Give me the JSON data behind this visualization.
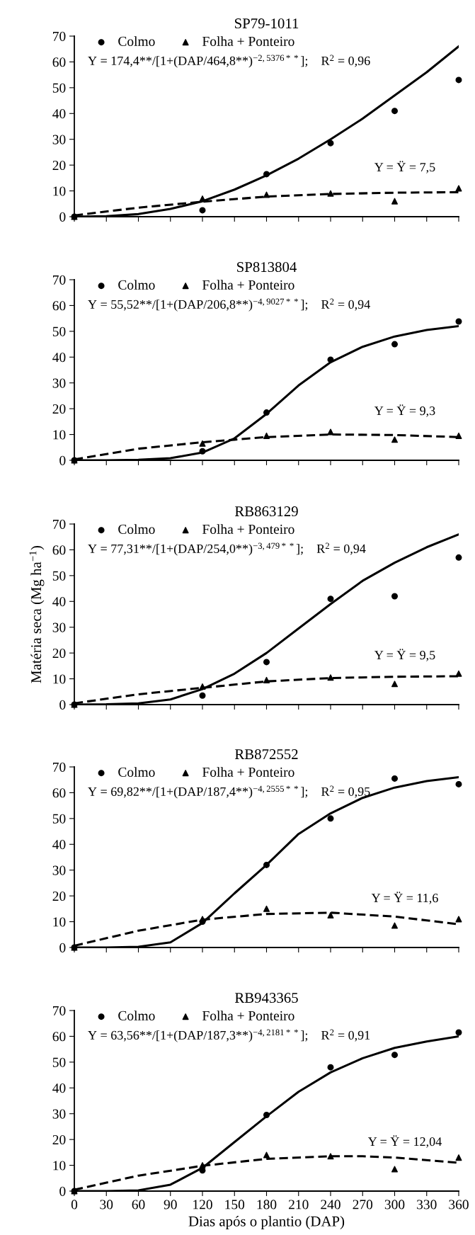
{
  "chart_data": [
    {
      "type": "scatter",
      "title": "SP79-1011",
      "x": [
        0,
        120,
        180,
        240,
        300,
        360
      ],
      "xlim": [
        0,
        360
      ],
      "xticks": [
        0,
        30,
        60,
        90,
        120,
        150,
        180,
        210,
        240,
        270,
        300,
        330,
        360
      ],
      "ylim": [
        0,
        70
      ],
      "yticks": [
        0,
        10,
        20,
        30,
        40,
        50,
        60,
        70
      ],
      "tick_labels": "y",
      "legend": "top left",
      "grid": false,
      "series": [
        {
          "name": "Colmo",
          "color": "#000000",
          "marker": "circle",
          "values": [
            0,
            2.5,
            16.5,
            28.5,
            41,
            53
          ]
        },
        {
          "name": "Folha + Ponteiro",
          "color": "#000000",
          "marker": "triangle",
          "values": [
            0,
            7,
            8.5,
            9,
            6,
            11
          ]
        },
        {
          "type": "line",
          "color": "#000000",
          "line_style": "solid",
          "x": [
            0,
            30,
            60,
            90,
            120,
            150,
            180,
            210,
            240,
            270,
            300,
            330,
            360
          ],
          "values": [
            0,
            0.2,
            1,
            3,
            6,
            10.5,
            16,
            22.5,
            30,
            38,
            47,
            56,
            66
          ]
        },
        {
          "type": "line",
          "color": "#000000",
          "line_style": "dashed",
          "x": [
            0,
            60,
            120,
            180,
            240,
            300,
            360
          ],
          "values": [
            0.5,
            3.5,
            5.8,
            7.8,
            8.8,
            9.3,
            9.5
          ]
        }
      ],
      "annotations": [
        "Y = 174,4**/[1+(DAP/464,8**)$^{−2,5376**}$];    R$^{2}$ = 0,96",
        "Y = Ÿ = 7,5"
      ]
    },
    {
      "type": "scatter",
      "title": "SP813804",
      "x": [
        0,
        120,
        180,
        240,
        300,
        360
      ],
      "xlim": [
        0,
        360
      ],
      "xticks": [
        0,
        30,
        60,
        90,
        120,
        150,
        180,
        210,
        240,
        270,
        300,
        330,
        360
      ],
      "ylim": [
        0,
        70
      ],
      "yticks": [
        0,
        10,
        20,
        30,
        40,
        50,
        60,
        70
      ],
      "tick_labels": "y",
      "legend": "top left",
      "grid": false,
      "series": [
        {
          "name": "Colmo",
          "color": "#000000",
          "marker": "circle",
          "values": [
            0,
            3.5,
            18.5,
            39,
            45,
            53.8
          ]
        },
        {
          "name": "Folha + Ponteiro",
          "color": "#000000",
          "marker": "triangle",
          "values": [
            0,
            6.5,
            9.5,
            11,
            8,
            9.5
          ]
        },
        {
          "type": "line",
          "color": "#000000",
          "line_style": "solid",
          "x": [
            0,
            30,
            60,
            90,
            120,
            150,
            180,
            210,
            240,
            270,
            300,
            330,
            360
          ],
          "values": [
            0,
            0,
            0.2,
            0.8,
            3,
            8.5,
            18,
            29,
            38,
            44,
            48,
            50.5,
            52
          ]
        },
        {
          "type": "line",
          "color": "#000000",
          "line_style": "dashed",
          "x": [
            0,
            60,
            120,
            150,
            180,
            240,
            300,
            360
          ],
          "values": [
            0.3,
            4.5,
            7,
            8,
            9,
            10,
            9.8,
            9
          ]
        }
      ],
      "annotations": [
        "Y = 55,52**/[1+(DAP/206,8**)$^{−4,9027**}$];    R$^{2}$ = 0,94",
        "Y = Ÿ = 9,3"
      ]
    },
    {
      "type": "scatter",
      "title": "RB863129",
      "ylabel": "Matéria seca (Mg ha$^{−1}$)",
      "x": [
        0,
        120,
        180,
        240,
        300,
        360
      ],
      "xlim": [
        0,
        360
      ],
      "xticks": [
        0,
        30,
        60,
        90,
        120,
        150,
        180,
        210,
        240,
        270,
        300,
        330,
        360
      ],
      "ylim": [
        0,
        70
      ],
      "yticks": [
        0,
        10,
        20,
        30,
        40,
        50,
        60,
        70
      ],
      "tick_labels": "y",
      "legend": "top left",
      "grid": false,
      "series": [
        {
          "name": "Colmo",
          "color": "#000000",
          "marker": "circle",
          "values": [
            0,
            3.5,
            16.5,
            41,
            42,
            57
          ]
        },
        {
          "name": "Folha + Ponteiro",
          "color": "#000000",
          "marker": "triangle",
          "values": [
            0,
            7,
            9.5,
            10.5,
            8,
            12
          ]
        },
        {
          "type": "line",
          "color": "#000000",
          "line_style": "solid",
          "x": [
            0,
            30,
            60,
            90,
            120,
            150,
            180,
            210,
            240,
            270,
            300,
            330,
            360
          ],
          "values": [
            0,
            0.1,
            0.5,
            2,
            6,
            12,
            20,
            29.5,
            39,
            48,
            55,
            61,
            66
          ]
        },
        {
          "type": "line",
          "color": "#000000",
          "line_style": "dashed",
          "x": [
            0,
            60,
            120,
            180,
            240,
            300,
            360
          ],
          "values": [
            0.5,
            4,
            6.5,
            9,
            10.3,
            10.8,
            11
          ]
        }
      ],
      "annotations": [
        "Y = 77,31**/[1+(DAP/254,0**)$^{−3,479**}$];    R$^{2}$ = 0,94",
        "Y = Ÿ = 9,5"
      ]
    },
    {
      "type": "scatter",
      "title": "RB872552",
      "x": [
        0,
        120,
        180,
        240,
        300,
        360
      ],
      "xlim": [
        0,
        360
      ],
      "xticks": [
        0,
        30,
        60,
        90,
        120,
        150,
        180,
        210,
        240,
        270,
        300,
        330,
        360
      ],
      "ylim": [
        0,
        70
      ],
      "yticks": [
        0,
        10,
        20,
        30,
        40,
        50,
        60,
        70
      ],
      "tick_labels": "y",
      "legend": "top left",
      "grid": false,
      "series": [
        {
          "name": "Colmo",
          "color": "#000000",
          "marker": "circle",
          "values": [
            0,
            10,
            32,
            50,
            65.5,
            63.3
          ]
        },
        {
          "name": "Folha + Ponteiro",
          "color": "#000000",
          "marker": "triangle",
          "values": [
            0,
            11,
            15,
            12.5,
            8.5,
            11
          ]
        },
        {
          "type": "line",
          "color": "#000000",
          "line_style": "solid",
          "x": [
            0,
            30,
            60,
            90,
            120,
            150,
            180,
            210,
            240,
            270,
            300,
            330,
            360
          ],
          "values": [
            0,
            0,
            0.3,
            2,
            9.5,
            21,
            32,
            44,
            52,
            58,
            62,
            64.5,
            66
          ]
        },
        {
          "type": "line",
          "color": "#000000",
          "line_style": "dashed",
          "x": [
            0,
            60,
            120,
            180,
            240,
            300,
            330,
            360
          ],
          "values": [
            0.7,
            6.5,
            10.8,
            13,
            13.5,
            12,
            10.5,
            9
          ]
        }
      ],
      "annotations": [
        "Y = 69,82**/[1+(DAP/187,4**)$^{−4,2555**}$];    R$^{2}$ = 0,95",
        "Y = Ÿ = 11,6"
      ]
    },
    {
      "type": "scatter",
      "title": "RB943365",
      "xlabel": "Dias após o plantio (DAP)",
      "x": [
        0,
        120,
        180,
        240,
        300,
        360
      ],
      "xlim": [
        0,
        360
      ],
      "xticks": [
        0,
        30,
        60,
        90,
        120,
        150,
        180,
        210,
        240,
        270,
        300,
        330,
        360
      ],
      "ylim": [
        0,
        70
      ],
      "yticks": [
        0,
        10,
        20,
        30,
        40,
        50,
        60,
        70
      ],
      "legend": "top left",
      "grid": false,
      "series": [
        {
          "name": "Colmo",
          "color": "#000000",
          "marker": "circle",
          "values": [
            0,
            8,
            29.5,
            48,
            52.8,
            61.5
          ]
        },
        {
          "name": "Folha + Ponteiro",
          "color": "#000000",
          "marker": "triangle",
          "values": [
            0,
            10,
            14,
            13.5,
            8.5,
            13
          ]
        },
        {
          "type": "line",
          "color": "#000000",
          "line_style": "solid",
          "x": [
            0,
            30,
            60,
            90,
            120,
            150,
            180,
            210,
            240,
            270,
            300,
            330,
            360
          ],
          "values": [
            0,
            0,
            0.3,
            2.5,
            9,
            19,
            29,
            38.5,
            46,
            51.5,
            55.5,
            58,
            60
          ]
        },
        {
          "type": "line",
          "color": "#000000",
          "line_style": "dashed",
          "x": [
            0,
            60,
            120,
            180,
            240,
            270,
            300,
            360
          ],
          "values": [
            0.5,
            6,
            9.8,
            12.5,
            13.5,
            13.5,
            13,
            11
          ]
        }
      ],
      "annotations": [
        "Y = 63,56**/[1+(DAP/187,3**)$^{−4,2181**}$];    R$^{2}$ = 0,91",
        "Y = Ÿ = 12,04"
      ]
    }
  ]
}
